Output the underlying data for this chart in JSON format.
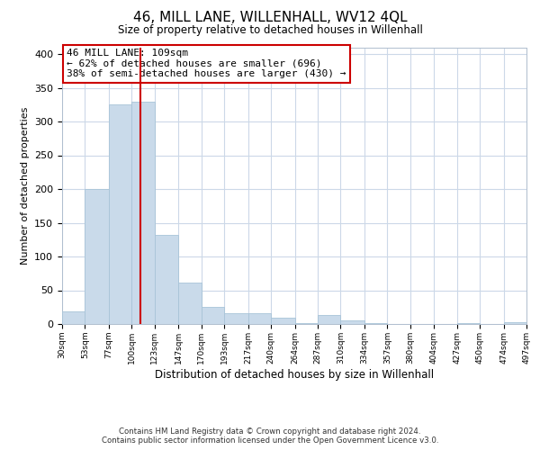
{
  "title": "46, MILL LANE, WILLENHALL, WV12 4QL",
  "subtitle": "Size of property relative to detached houses in Willenhall",
  "xlabel": "Distribution of detached houses by size in Willenhall",
  "ylabel": "Number of detached properties",
  "bar_color": "#c9daea",
  "bar_edge_color": "#a8c4d8",
  "vline_x": 109,
  "vline_color": "#cc0000",
  "bin_edges": [
    30,
    53,
    77,
    100,
    123,
    147,
    170,
    193,
    217,
    240,
    264,
    287,
    310,
    334,
    357,
    380,
    404,
    427,
    450,
    474,
    497
  ],
  "bar_heights": [
    19,
    200,
    325,
    330,
    132,
    62,
    25,
    16,
    16,
    10,
    1,
    13,
    6,
    1,
    0,
    0,
    0,
    1,
    0,
    3
  ],
  "ylim": [
    0,
    410
  ],
  "yticks": [
    0,
    50,
    100,
    150,
    200,
    250,
    300,
    350,
    400
  ],
  "annotation_title": "46 MILL LANE: 109sqm",
  "annotation_line1": "← 62% of detached houses are smaller (696)",
  "annotation_line2": "38% of semi-detached houses are larger (430) →",
  "annotation_box_color": "#ffffff",
  "annotation_box_edge_color": "#cc0000",
  "footer_line1": "Contains HM Land Registry data © Crown copyright and database right 2024.",
  "footer_line2": "Contains public sector information licensed under the Open Government Licence v3.0.",
  "background_color": "#ffffff",
  "grid_color": "#ccd8e8"
}
